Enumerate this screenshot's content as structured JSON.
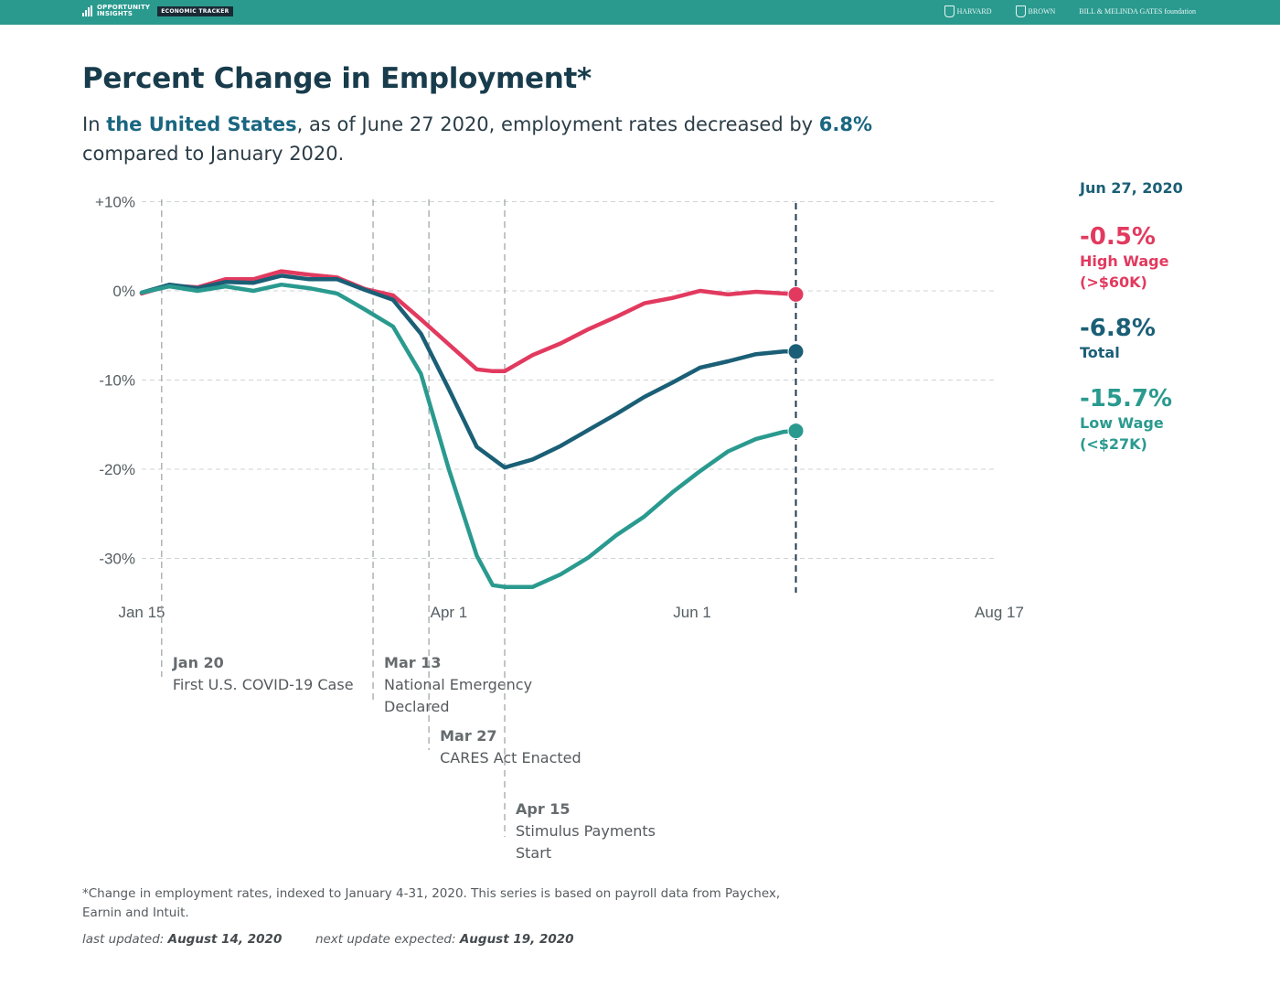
{
  "header": {
    "brand_line1": "OPPORTUNITY",
    "brand_line2": "INSIGHTS",
    "tracker_label": "ECONOMIC TRACKER",
    "partners": [
      "HARVARD",
      "BROWN",
      "BILL & MELINDA GATES foundation"
    ],
    "bar_color": "#2a9a8f"
  },
  "title": "Percent Change in Employment*",
  "subtitle": {
    "prefix": "In ",
    "region": "the United States",
    "middle": ", as of June 27 2020, employment rates decreased by ",
    "value": "6.8%",
    "line2": "compared to January 2020."
  },
  "side_panel": {
    "date": "Jun 27, 2020",
    "entries": [
      {
        "value": "-0.5%",
        "label_line1": "High Wage",
        "label_line2": "(>$60K)",
        "color": "#e23a5f"
      },
      {
        "value": "-6.8%",
        "label_line1": "Total",
        "label_line2": "",
        "color": "#1a5f76"
      },
      {
        "value": "-15.7%",
        "label_line1": "Low Wage",
        "label_line2": "(<$27K)",
        "color": "#2a9a8f"
      }
    ]
  },
  "chart_data": {
    "type": "line",
    "x_ticks": [
      "Jan 15",
      "Apr 1",
      "Jun 1",
      "Aug 17"
    ],
    "x_tick_days": [
      0,
      77,
      138,
      215
    ],
    "xlim_days": [
      0,
      215
    ],
    "y_ticks": [
      "+10%",
      "0%",
      "-10%",
      "-20%",
      "-30%"
    ],
    "y_tick_values": [
      10,
      0,
      -10,
      -20,
      -30
    ],
    "ylim": [
      -34,
      10
    ],
    "grid": "horizontal dashed",
    "series": [
      {
        "name": "High Wage",
        "color": "#e23a5f",
        "x": [
          0,
          7,
          14,
          21,
          28,
          35,
          42,
          49,
          56,
          63,
          70,
          77,
          84,
          88,
          91,
          98,
          105,
          112,
          119,
          126,
          133,
          140,
          147,
          154,
          161,
          164
        ],
        "y": [
          -0.3,
          0.6,
          0.4,
          1.3,
          1.3,
          2.2,
          1.8,
          1.5,
          0.2,
          -0.5,
          -3.2,
          -6.0,
          -8.8,
          -9.0,
          -9.0,
          -7.2,
          -5.9,
          -4.3,
          -2.9,
          -1.4,
          -0.8,
          0.0,
          -0.4,
          -0.1,
          -0.3,
          -0.4
        ]
      },
      {
        "name": "Total",
        "color": "#1a5f76",
        "x": [
          0,
          7,
          14,
          21,
          28,
          35,
          42,
          49,
          56,
          63,
          70,
          77,
          84,
          91,
          98,
          105,
          112,
          119,
          126,
          133,
          140,
          147,
          154,
          161,
          164
        ],
        "y": [
          -0.2,
          0.7,
          0.3,
          1.0,
          0.9,
          1.7,
          1.3,
          1.3,
          0.1,
          -1.0,
          -4.8,
          -11.0,
          -17.5,
          -19.8,
          -18.9,
          -17.4,
          -15.6,
          -13.8,
          -11.9,
          -10.3,
          -8.6,
          -7.9,
          -7.1,
          -6.8,
          -6.8
        ]
      },
      {
        "name": "Low Wage",
        "color": "#2a9a8f",
        "x": [
          0,
          7,
          14,
          21,
          28,
          35,
          42,
          49,
          56,
          63,
          70,
          77,
          84,
          88,
          91,
          98,
          105,
          112,
          119,
          126,
          133,
          140,
          147,
          154,
          161,
          164
        ],
        "y": [
          -0.2,
          0.5,
          0.0,
          0.5,
          0.0,
          0.7,
          0.3,
          -0.3,
          -2.1,
          -4.0,
          -9.3,
          -20.0,
          -29.7,
          -33.0,
          -33.2,
          -33.2,
          -31.8,
          -29.9,
          -27.4,
          -25.3,
          -22.6,
          -20.2,
          -18.0,
          -16.6,
          -15.8,
          -15.7
        ]
      }
    ],
    "end_marker_day": 164,
    "annotations": [
      {
        "day": 5,
        "date": "Jan 20",
        "text": [
          "First U.S. COVID-19 Case"
        ]
      },
      {
        "day": 58,
        "date": "Mar 13",
        "text": [
          "National Emergency",
          "Declared"
        ]
      },
      {
        "day": 72,
        "date": "Mar 27",
        "text": [
          "CARES Act Enacted"
        ]
      },
      {
        "day": 91,
        "date": "Apr 15",
        "text": [
          "Stimulus Payments",
          "Start"
        ]
      }
    ]
  },
  "footnote": "*Change in employment rates, indexed to January 4-31, 2020. This series is based on payroll data from Paychex, Earnin and Intuit.",
  "updates": {
    "last_label": "last updated:",
    "last_value": "August 14, 2020",
    "next_label": "next update expected:",
    "next_value": "August 19, 2020"
  }
}
